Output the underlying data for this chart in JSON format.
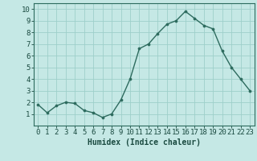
{
  "x": [
    0,
    1,
    2,
    3,
    4,
    5,
    6,
    7,
    8,
    9,
    10,
    11,
    12,
    13,
    14,
    15,
    16,
    17,
    18,
    19,
    20,
    21,
    22,
    23
  ],
  "y": [
    1.8,
    1.1,
    1.7,
    2.0,
    1.9,
    1.3,
    1.1,
    0.7,
    1.0,
    2.2,
    4.0,
    6.6,
    7.0,
    7.9,
    8.7,
    9.0,
    9.8,
    9.2,
    8.6,
    8.3,
    6.4,
    5.0,
    4.0,
    3.0
  ],
  "line_color": "#2d6b5e",
  "marker_color": "#2d6b5e",
  "bg_color": "#c5e8e5",
  "grid_color": "#9ecfca",
  "xlabel": "Humidex (Indice chaleur)",
  "xlabel_color": "#1a4a40",
  "tick_color": "#1a4a40",
  "spine_color": "#2d6b5e",
  "xlim": [
    -0.5,
    23.5
  ],
  "ylim": [
    0,
    10.5
  ],
  "yticks": [
    1,
    2,
    3,
    4,
    5,
    6,
    7,
    8,
    9,
    10
  ],
  "xticks": [
    0,
    1,
    2,
    3,
    4,
    5,
    6,
    7,
    8,
    9,
    10,
    11,
    12,
    13,
    14,
    15,
    16,
    17,
    18,
    19,
    20,
    21,
    22,
    23
  ],
  "font_size": 6.5,
  "marker_size": 2.2,
  "line_width": 1.0
}
